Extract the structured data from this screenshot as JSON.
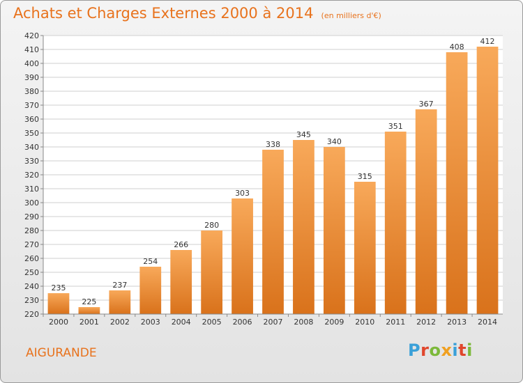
{
  "title": "Achats et Charges Externes 2000 à 2014",
  "unit": "(en milliers d'€)",
  "commune": "AIGURANDE",
  "logo": {
    "text": "Proxiti",
    "colors": [
      "#3aa0d8",
      "#e0462c",
      "#7cb93a",
      "#f0a020",
      "#3aa0d8",
      "#e0462c",
      "#7cb93a"
    ]
  },
  "colors": {
    "bar_light": "#f8a95a",
    "bar_dark": "#d9721b",
    "title": "#e8721c",
    "grid": "#cfcfcf"
  },
  "chart_data": {
    "type": "bar",
    "categories": [
      "2000",
      "2001",
      "2002",
      "2003",
      "2004",
      "2005",
      "2006",
      "2007",
      "2008",
      "2009",
      "2010",
      "2011",
      "2012",
      "2013",
      "2014"
    ],
    "values": [
      235,
      225,
      237,
      254,
      266,
      280,
      303,
      338,
      345,
      340,
      315,
      351,
      367,
      408,
      412
    ],
    "title": "Achats et Charges Externes 2000 à 2014",
    "xlabel": "",
    "ylabel": "",
    "ylim": [
      220,
      420
    ],
    "yticks": [
      220,
      230,
      240,
      250,
      260,
      270,
      280,
      290,
      300,
      310,
      320,
      330,
      340,
      350,
      360,
      370,
      380,
      390,
      400,
      410,
      420
    ],
    "grid": true,
    "legend": "none"
  }
}
